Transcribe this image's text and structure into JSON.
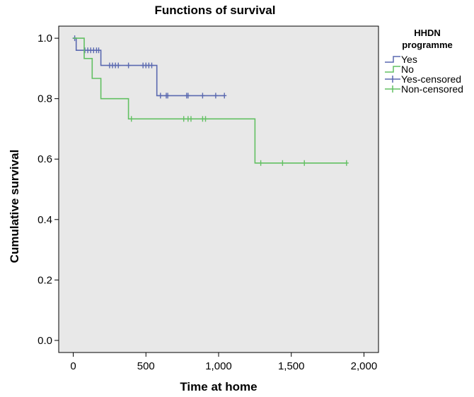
{
  "chart_data": {
    "type": "line",
    "title": "Functions of survival",
    "xlabel": "Time at home",
    "ylabel": "Cumulative survival",
    "xlim": [
      -100,
      2100
    ],
    "ylim": [
      -0.04,
      1.04
    ],
    "xticks": [
      {
        "value": 0,
        "label": "0"
      },
      {
        "value": 500,
        "label": "500"
      },
      {
        "value": 1000,
        "label": "1,000"
      },
      {
        "value": 1500,
        "label": "1,500"
      },
      {
        "value": 2000,
        "label": "2,000"
      }
    ],
    "yticks": [
      {
        "value": 0.0,
        "label": "0.0"
      },
      {
        "value": 0.2,
        "label": "0.2"
      },
      {
        "value": 0.4,
        "label": "0.4"
      },
      {
        "value": 0.6,
        "label": "0.6"
      },
      {
        "value": 0.8,
        "label": "0.8"
      },
      {
        "value": 1.0,
        "label": "1.0"
      }
    ],
    "grid": false,
    "legend": {
      "title_lines": [
        "HHDN",
        "programme"
      ],
      "placement": "right",
      "entries": [
        "Yes",
        "No",
        "Yes-censored",
        "Non-censored"
      ]
    },
    "series": [
      {
        "name": "Yes",
        "color": "#5a69b0",
        "step_x": [
          0,
          20,
          190,
          575,
          1040
        ],
        "step_y": [
          1.0,
          0.96,
          0.91,
          0.81,
          0.81
        ],
        "censored_x": [
          10,
          80,
          100,
          120,
          140,
          160,
          175,
          250,
          270,
          290,
          310,
          380,
          480,
          500,
          520,
          540,
          600,
          640,
          650,
          780,
          790,
          890,
          980,
          1040
        ]
      },
      {
        "name": "No",
        "color": "#62c062",
        "step_x": [
          0,
          75,
          130,
          190,
          380,
          1250,
          1880
        ],
        "step_y": [
          1.0,
          0.933,
          0.867,
          0.8,
          0.733,
          0.587,
          0.587
        ],
        "censored_x": [
          400,
          760,
          790,
          810,
          890,
          910,
          1290,
          1440,
          1590,
          1880
        ]
      }
    ],
    "colors": {
      "plot_background": "#e8e8e8",
      "yes": "#5a69b0",
      "no": "#62c062"
    }
  }
}
